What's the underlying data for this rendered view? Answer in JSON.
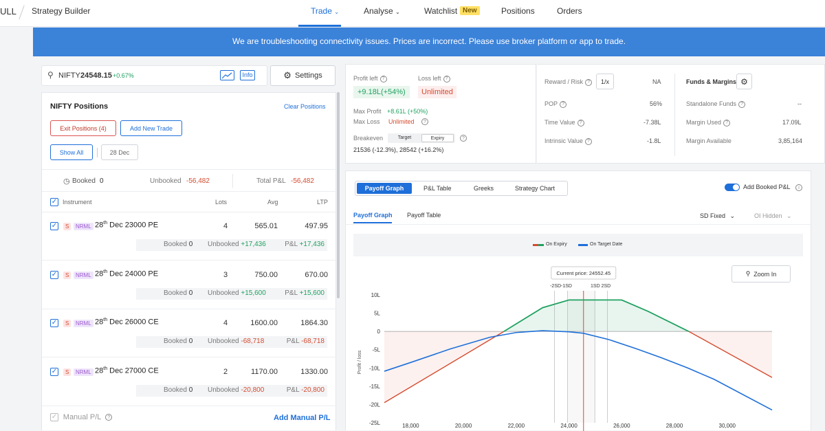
{
  "nav": {
    "brand": "ULL",
    "title": "Strategy Builder",
    "items": [
      {
        "label": "Trade"
      },
      {
        "label": "Analyse"
      },
      {
        "label": "Watchlist"
      },
      {
        "label": "Positions"
      },
      {
        "label": "Orders"
      }
    ],
    "new_badge": "New"
  },
  "banner": "We are troubleshooting connectivity issues. Prices are incorrect. Please use broker platform or app to trade.",
  "search": {
    "symbol": "NIFTY",
    "price": "24548.15",
    "change": "+0.67%",
    "info_label": "Info"
  },
  "settings_label": "Settings",
  "positions": {
    "title": "NIFTY Positions",
    "clear_label": "Clear Positions",
    "exit_label": "Exit Positions (4)",
    "add_label": "Add New Trade",
    "show_all_label": "Show All",
    "date_label": "28 Dec",
    "booked_label": "Booked",
    "booked_value": "0",
    "unbooked_label": "Unbooked",
    "unbooked_value": "-56,482",
    "total_label": "Total P&L",
    "total_value": "-56,482",
    "col_instrument": "Instrument",
    "col_lots": "Lots",
    "col_avg": "Avg",
    "col_ltp": "LTP",
    "rows": [
      {
        "s": "S",
        "type": "NRML",
        "day": "28",
        "sup": "th",
        "name": "Dec 23000 PE",
        "lots": "4",
        "avg": "565.01",
        "ltp": "497.95",
        "booked": "0",
        "unbooked": "+17,436",
        "pnl": "+17,436"
      },
      {
        "s": "S",
        "type": "NRML",
        "day": "28",
        "sup": "th",
        "name": "Dec 24000 PE",
        "lots": "3",
        "avg": "750.00",
        "ltp": "670.00",
        "booked": "0",
        "unbooked": "+15,600",
        "pnl": "+15,600"
      },
      {
        "s": "S",
        "type": "NRML",
        "day": "28",
        "sup": "th",
        "name": "Dec 26000 CE",
        "lots": "4",
        "avg": "1600.00",
        "ltp": "1864.30",
        "booked": "0",
        "unbooked": "-68,718",
        "pnl": "-68,718"
      },
      {
        "s": "S",
        "type": "NRML",
        "day": "28",
        "sup": "th",
        "name": "Dec 27000 CE",
        "lots": "2",
        "avg": "1170.00",
        "ltp": "1330.00",
        "booked": "0",
        "unbooked": "-20,800",
        "pnl": "-20,800"
      }
    ],
    "booked_row_label": "Booked",
    "unbooked_row_label": "Unbooked",
    "pnl_row_label": "P&L",
    "manual_label": "Manual P/L",
    "add_manual_label": "Add Manual P/L"
  },
  "stats": {
    "profit_left_label": "Profit left",
    "profit_left_value": "+9.18L(+54%)",
    "loss_left_label": "Loss left",
    "loss_left_value": "Unlimited",
    "max_profit_label": "Max Profit",
    "max_profit_value": "+8.61L (+50%)",
    "max_loss_label": "Max Loss",
    "max_loss_value": "Unlimited",
    "breakeven_label": "Breakeven",
    "target_label": "Target",
    "expiry_label": "Expiry",
    "breakeven_value": "21536 (-12.3%), 28542 (+16.2%)",
    "reward_risk_label": "Reward / Risk",
    "reward_risk_btn": "1/x",
    "reward_risk_value": "NA",
    "pop_label": "POP",
    "pop_value": "56%",
    "time_value_label": "Time Value",
    "time_value_value": "-7.38L",
    "intrinsic_label": "Intrinsic Value",
    "intrinsic_value": "-1.8L",
    "funds_label": "Funds & Margins",
    "standalone_label": "Standalone Funds",
    "standalone_value": "--",
    "margin_used_label": "Margin Used",
    "margin_used_value": "17.09L",
    "margin_avail_label": "Margin Available",
    "margin_avail_value": "3,85,164"
  },
  "graph_panel": {
    "tabs": [
      "Payoff Graph",
      "P&L Table",
      "Greeks",
      "Strategy Chart"
    ],
    "add_booked_label": "Add Booked P&L",
    "subtabs": [
      "Payoff Graph",
      "Payoff Table"
    ],
    "sd_label": "SD Fixed",
    "oi_label": "OI Hidden",
    "legend_expiry": "On Expiry",
    "legend_target": "On Target Date",
    "zoom_label": "Zoom In",
    "current_price_label": "Current price: 24552.45",
    "sd_left": "-2SD-1SD",
    "sd_right": "1SD 2SD",
    "ylabel": "Profit / loss"
  },
  "chart_data": {
    "type": "line",
    "ylabel": "Profit / loss",
    "yticks": [
      "10L",
      "5L",
      "0",
      "-5L",
      "-10L",
      "-15L",
      "-20L",
      "-25L"
    ],
    "xticks": [
      "18,000",
      "20,000",
      "22,000",
      "24,000",
      "26,000",
      "28,000",
      "30,000"
    ],
    "xlim": [
      17000,
      31700
    ],
    "ylim": [
      -25,
      10
    ],
    "current_price": 24552.45,
    "sd_lines": [
      23450,
      23950,
      24980,
      25460
    ],
    "series": [
      {
        "name": "On Expiry",
        "color": "#d44b2f/#20a160",
        "x": [
          17000,
          21536,
          23000,
          24000,
          25000,
          26000,
          27000,
          28542,
          31700
        ],
        "y": [
          -19.5,
          0,
          6.5,
          8.61,
          8.61,
          8.61,
          5.5,
          0,
          -12.6
        ]
      },
      {
        "name": "On Target Date",
        "color": "#1e6fd9",
        "x": [
          17000,
          18000,
          19500,
          21000,
          22000,
          23000,
          24000,
          24550,
          25500,
          26500,
          27500,
          28500,
          29500,
          31700
        ],
        "y": [
          -10.9,
          -8.5,
          -4.8,
          -1.6,
          -0.3,
          0.2,
          -0.1,
          -0.5,
          -2.2,
          -4.6,
          -7.2,
          -10,
          -13.1,
          -21.5
        ]
      }
    ]
  }
}
